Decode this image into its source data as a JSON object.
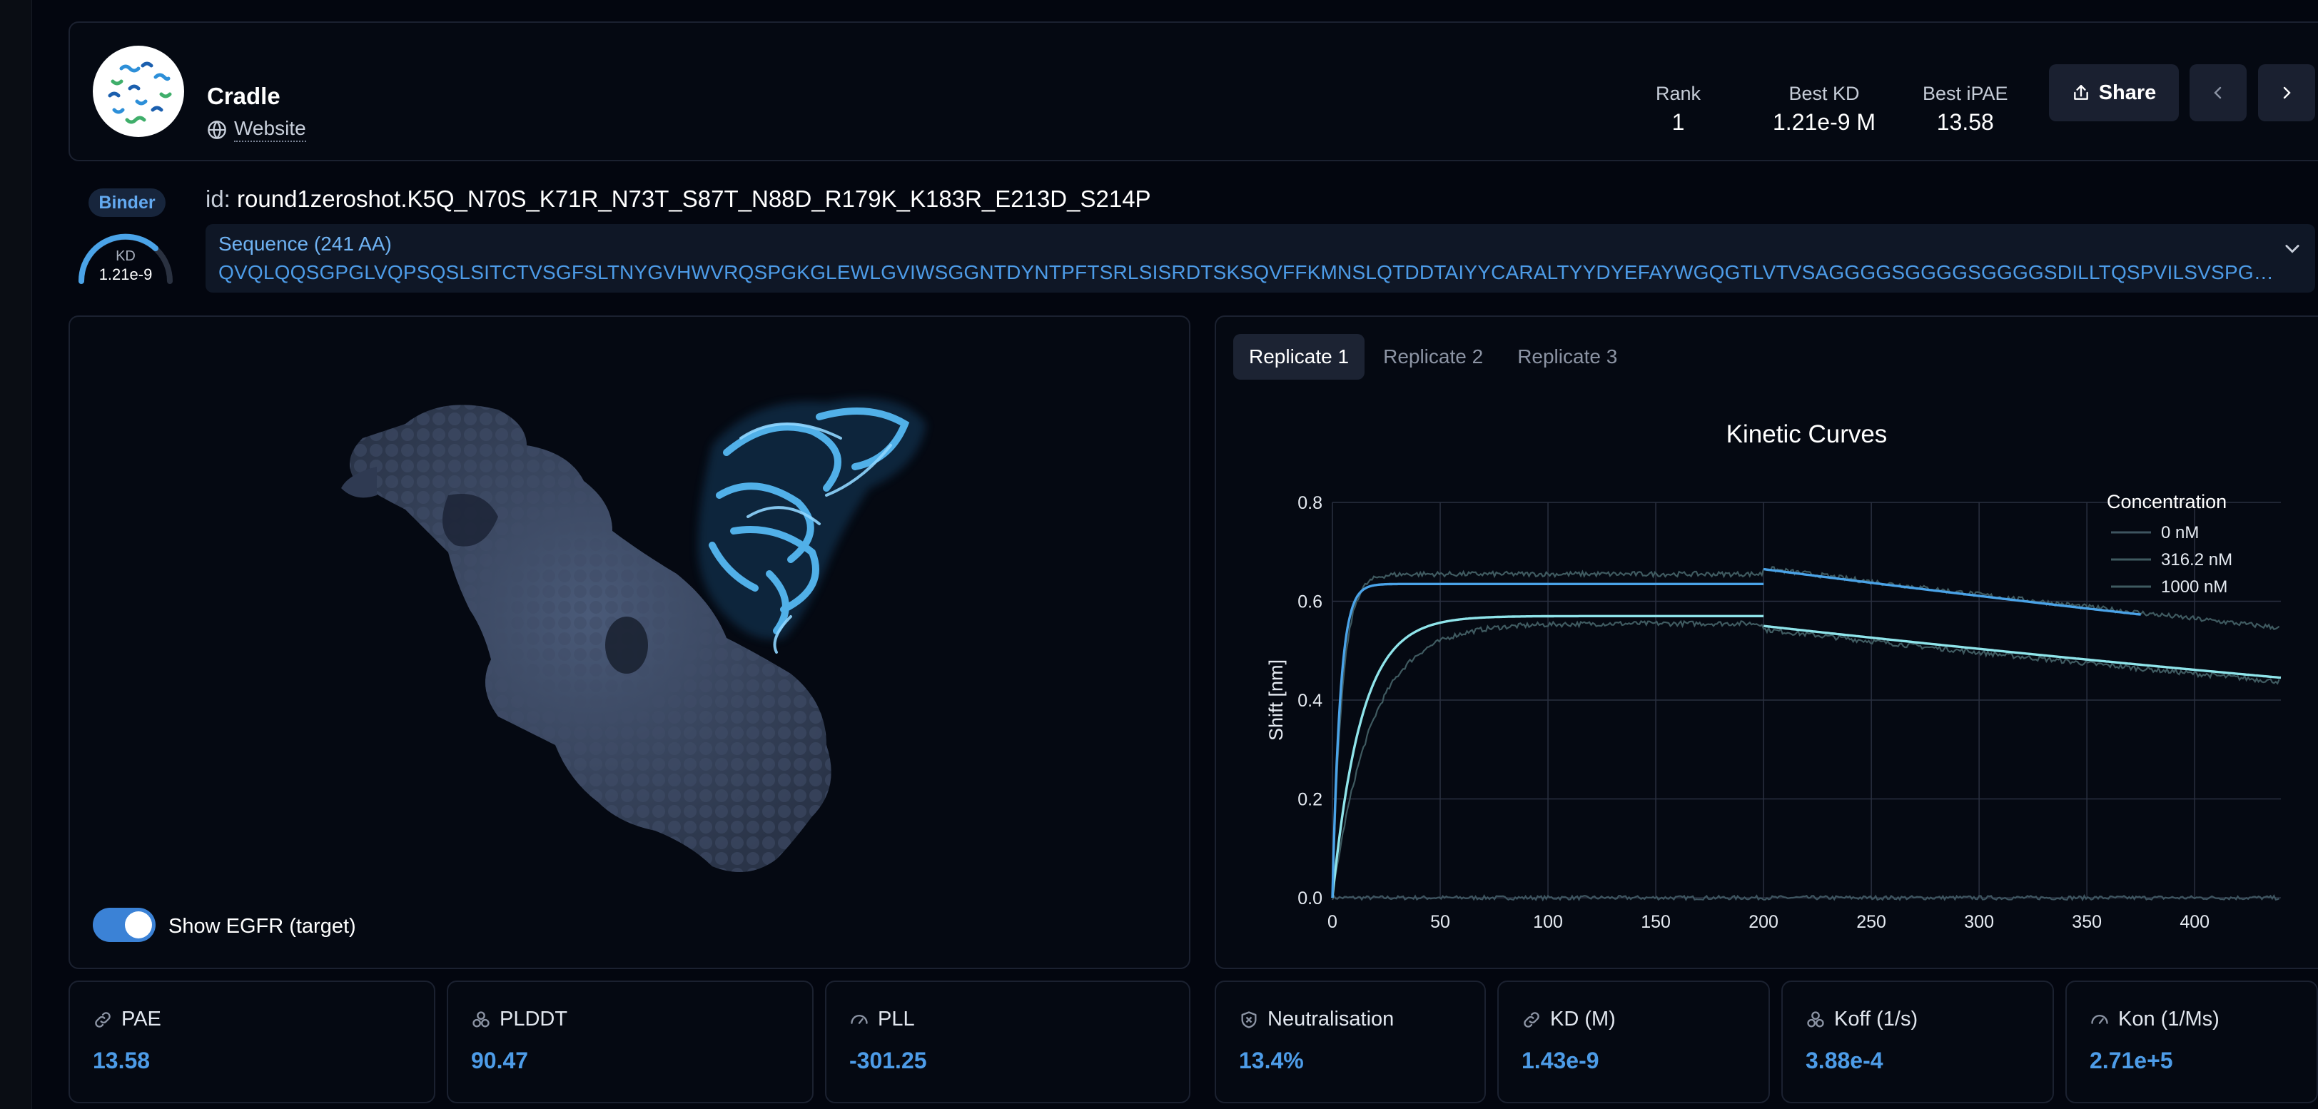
{
  "header": {
    "org_name": "Cradle",
    "website_label": "Website",
    "stats": [
      {
        "label": "Rank",
        "value": "1"
      },
      {
        "label": "Best KD",
        "value": "1.21e-9 M"
      },
      {
        "label": "Best iPAE",
        "value": "13.58"
      }
    ],
    "share_label": "Share"
  },
  "binder": {
    "badge": "Binder",
    "kd_label": "KD",
    "kd_value": "1.21e-9",
    "id_prefix": "id:",
    "id": "round1zeroshot.K5Q_N70S_K71R_N73T_S87T_N88D_R179K_K183R_E213D_S214P",
    "sequence_title": "Sequence (241 AA)",
    "sequence": "QVQLQQSGPGLVQPSQSLSITCTVSGFSLTNYGVHWVRQSPGKGLEWLGVIWSGGNTDYNTPFTSRLSISRDTSKSQVFFKMNSLQTDDTAIYYCARALTYYDYEFAYWGQGTLVTVSAGGGGSGGGGSGGGGSDILLTQSPVILSVSPGERVSFS..."
  },
  "structure_view": {
    "toggle_label": "Show EGFR (target)",
    "toggle_on": true
  },
  "replicate_tabs": [
    "Replicate 1",
    "Replicate 2",
    "Replicate 3"
  ],
  "active_tab": 0,
  "chart_data": {
    "type": "line",
    "title": "Kinetic Curves",
    "xlabel": "",
    "ylabel": "Shift [nm]",
    "xlim": [
      0,
      440
    ],
    "ylim": [
      0,
      0.8
    ],
    "xticks": [
      0,
      50,
      100,
      150,
      200,
      250,
      300,
      350,
      400
    ],
    "yticks": [
      0,
      0.2,
      0.4,
      0.6,
      0.8
    ],
    "ytick_labels": [
      "0.0",
      "0.2",
      "0.4",
      "0.6",
      "0.8"
    ],
    "legend_title": "Concentration",
    "legend_position": "top-right",
    "grid": true,
    "association_end": 200,
    "series": [
      {
        "name": "0 nM",
        "baseline": 0.0,
        "color": "#3e5560"
      },
      {
        "name": "316.2 nM",
        "plateau": 0.57,
        "k_assoc": 0.075,
        "k_dissoc": 0.00088,
        "raw_plateau": 0.555,
        "raw_k": 0.055,
        "color": "#8fe4ea",
        "raw_color": "#3f5a60"
      },
      {
        "name": "1000 nM",
        "plateau": 0.635,
        "k_assoc": 0.28,
        "k_dissoc": 0.00085,
        "raw_plateau": 0.655,
        "raw_k": 0.22,
        "color": "#4aa3e8",
        "raw_color": "#3f5a60",
        "fit_visible_until": 375
      }
    ]
  },
  "metrics": [
    {
      "label": "PAE",
      "value": "13.58",
      "icon": "link-icon"
    },
    {
      "label": "PLDDT",
      "value": "90.47",
      "icon": "molecule-icon"
    },
    {
      "label": "PLL",
      "value": "-301.25",
      "icon": "gauge-icon"
    },
    {
      "label": "Neutralisation",
      "value": "13.4%",
      "icon": "shield-icon"
    },
    {
      "label": "KD (M)",
      "value": "1.43e-9",
      "icon": "link-icon"
    },
    {
      "label": "Koff (1/s)",
      "value": "3.88e-4",
      "icon": "molecule-icon"
    },
    {
      "label": "Kon (1/Ms)",
      "value": "2.71e+5",
      "icon": "gauge-icon"
    }
  ],
  "colors": {
    "accent": "#4d9ce8",
    "background": "#03060f",
    "card_border": "#1b2130"
  }
}
